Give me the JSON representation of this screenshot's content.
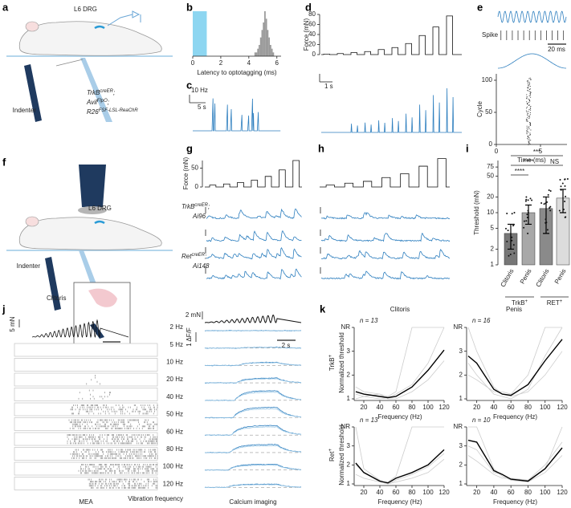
{
  "a": {
    "letter": "a",
    "drg": "L6 DRG",
    "indenter": "Indenter",
    "genotype": [
      {
        "base": "TrkB",
        "sup": "creER",
        "end": ";"
      },
      {
        "base": "Avil",
        "sup": "FlpO",
        "end": ";"
      },
      {
        "base": "R26",
        "sup": "FSF-LSL-ReaChR"
      }
    ]
  },
  "b": {
    "letter": "b",
    "chart_data": {
      "type": "histogram",
      "xlabel": "Latency to optotagging (ms)",
      "bins": [
        4.4,
        4.5,
        4.6,
        4.7,
        4.8,
        4.9,
        5.0,
        5.1,
        5.2,
        5.3,
        5.4,
        5.5,
        5.6,
        5.7,
        5.8
      ],
      "counts": [
        1,
        1,
        2,
        3,
        5,
        7,
        9,
        12,
        10,
        7,
        5,
        3,
        2,
        1
      ],
      "ylim": [
        0,
        12
      ],
      "xlim": [
        0,
        6.3
      ],
      "xticks": [
        0,
        2,
        4,
        6
      ],
      "shaded": [
        0,
        1
      ],
      "color": "#9a9a9a",
      "shade_color": "#8dd6f1"
    }
  },
  "c": {
    "letter": "c",
    "scale_y": "10 Hz",
    "scale_x": "5 s"
  },
  "d": {
    "letter": "d",
    "ylabel": "Force (mN)",
    "ylim": [
      0,
      80
    ],
    "yticks": [
      0,
      20,
      40,
      60,
      80
    ],
    "steps": [
      1,
      2,
      4,
      6,
      10,
      14,
      22,
      38,
      55,
      77
    ],
    "scale_x": "1 s"
  },
  "e": {
    "letter": "e",
    "spike": "Spike",
    "scale_x": "20 ms",
    "ylabel": "Cycle",
    "ylim": [
      0,
      110
    ],
    "yticks": [
      0,
      50,
      100
    ],
    "xlabel": "Time (ms)",
    "xlim": [
      0,
      8
    ],
    "xticks": [
      0,
      5
    ]
  },
  "f": {
    "letter": "f",
    "drg": "L6 DRG",
    "indenter": "Indenter",
    "clitoris": "Clitoris"
  },
  "g": {
    "letter": "g",
    "ylabel": "Force (mN)",
    "ylim": [
      0,
      70
    ],
    "yticks": [
      0,
      50
    ],
    "steps": [
      5,
      8,
      12,
      18,
      28,
      45,
      70
    ],
    "labels": [
      {
        "base": "TrkB",
        "sup": "creER",
        "end": ";",
        "line2": "Ai96"
      },
      {
        "base": "Ret",
        "sup": "creER",
        "end": ";",
        "line2": "Ai148"
      }
    ]
  },
  "h": {
    "letter": "h",
    "steps": [
      5,
      10,
      15,
      25,
      35,
      55,
      75
    ]
  },
  "i": {
    "letter": "i",
    "chart_data": {
      "type": "bar",
      "ylabel": "Threshold (mN)",
      "categories": [
        "Clitoris",
        "Penis",
        "Clitoris",
        "Penis"
      ],
      "groups": [
        {
          "base": "TrkB",
          "sup": "+"
        },
        {
          "base": "RET",
          "sup": "+"
        }
      ],
      "values": [
        4,
        10,
        12,
        19
      ],
      "errors": [
        2,
        4,
        8,
        9
      ],
      "colors": [
        "#777777",
        "#a8a8a8",
        "#8a8a8a",
        "#dcdcdc"
      ],
      "log": true,
      "ylim": [
        1,
        100
      ],
      "yticks": [
        1,
        2,
        5,
        10,
        20,
        50,
        75
      ],
      "significance": [
        "***",
        "****",
        "NS",
        "****"
      ]
    }
  },
  "j": {
    "letter": "j",
    "force_scale": "5 mN",
    "time_scale": "2 s",
    "frequencies": [
      "2 Hz",
      "5 Hz",
      "10 Hz",
      "20 Hz",
      "40 Hz",
      "50 Hz",
      "60 Hz",
      "80 Hz",
      "100 Hz",
      "120 Hz"
    ],
    "freq_title": "Vibration frequency",
    "mea": "MEA",
    "ca_force_scale": "2 mN",
    "ca_scale": "1 ΔF/F",
    "ca_time_scale": "2 s",
    "ca_title": "Calcium imaging"
  },
  "k": {
    "letter": "k",
    "columns": [
      "Clitoris",
      "Penis"
    ],
    "rows": [
      {
        "base": "TrkB",
        "sup": "+"
      },
      {
        "base": "Ret",
        "sup": "+"
      }
    ],
    "ylabel": "Normalized threshold",
    "xlabel": "Frequency (Hz)",
    "chart_data": [
      {
        "type": "line",
        "n": "n = 13",
        "x": [
          10,
          20,
          40,
          50,
          60,
          80,
          100,
          120
        ],
        "xlim": [
          10,
          120
        ],
        "xticks": [
          20,
          40,
          60,
          80,
          100,
          120
        ],
        "ylim": [
          1,
          4
        ],
        "yticks": [
          1,
          2,
          3,
          {
            "value": 4,
            "label": "NR"
          }
        ],
        "series": [
          {
            "color": "#cccccc",
            "values": [
              1,
              1.1,
              1.2,
              1,
              1,
              1.3,
              1.8,
              2.6
            ]
          },
          {
            "color": "#cccccc",
            "values": [
              1.5,
              1.3,
              1.2,
              1.1,
              1.3,
              4,
              4,
              4
            ]
          },
          {
            "color": "#cccccc",
            "values": [
              1.2,
              1.1,
              1,
              1.05,
              1.2,
              1.6,
              2.5,
              4
            ]
          },
          {
            "color": "#000000",
            "values": [
              1.3,
              1.2,
              1.1,
              1.05,
              1.1,
              1.5,
              2.2,
              3.05
            ]
          }
        ]
      },
      {
        "type": "line",
        "n": "n = 16",
        "x": [
          10,
          20,
          40,
          50,
          60,
          80,
          100,
          120
        ],
        "xlim": [
          10,
          120
        ],
        "xticks": [
          20,
          40,
          60,
          80,
          100,
          120
        ],
        "ylim": [
          1,
          4
        ],
        "yticks": [
          1,
          2,
          3,
          {
            "value": 4,
            "label": "NR"
          }
        ],
        "series": [
          {
            "color": "#cccccc",
            "values": [
              4,
              3,
              1.5,
              1.2,
              1.1,
              1.3,
              2,
              3
            ]
          },
          {
            "color": "#cccccc",
            "values": [
              2.5,
              2,
              1.2,
              1.1,
              1,
              1.4,
              2.8,
              4
            ]
          },
          {
            "color": "#cccccc",
            "values": [
              2,
              1.8,
              1.3,
              1.3,
              1.2,
              2,
              4,
              4
            ]
          },
          {
            "color": "#000000",
            "values": [
              2.8,
              2.5,
              1.4,
              1.2,
              1.15,
              1.6,
              2.6,
              3.5
            ]
          }
        ]
      },
      {
        "type": "line",
        "n": "n = 13",
        "x": [
          10,
          20,
          40,
          50,
          60,
          80,
          100,
          120
        ],
        "xlim": [
          10,
          120
        ],
        "xticks": [
          20,
          40,
          60,
          80,
          100,
          120
        ],
        "ylim": [
          1,
          4
        ],
        "yticks": [
          1,
          2,
          3,
          {
            "value": 4,
            "label": "NR"
          }
        ],
        "series": [
          {
            "color": "#cccccc",
            "values": [
              4,
              1.8,
              1.2,
              1,
              1.1,
              1.3,
              1.6,
              2.3
            ]
          },
          {
            "color": "#cccccc",
            "values": [
              1.5,
              1.3,
              1.1,
              1.1,
              1.4,
              4,
              4,
              4
            ]
          },
          {
            "color": "#cccccc",
            "values": [
              2,
              1.6,
              1.1,
              1,
              1.2,
              1.5,
              1.9,
              2.6
            ]
          },
          {
            "color": "#000000",
            "values": [
              2.1,
              1.6,
              1.15,
              1.05,
              1.3,
              1.6,
              2,
              2.8
            ]
          }
        ]
      },
      {
        "type": "line",
        "n": "n = 10",
        "x": [
          10,
          20,
          40,
          50,
          60,
          80,
          100,
          120
        ],
        "xlim": [
          10,
          120
        ],
        "xticks": [
          20,
          40,
          60,
          80,
          100,
          120
        ],
        "ylim": [
          1,
          4
        ],
        "yticks": [
          1,
          2,
          3,
          {
            "value": 4,
            "label": "NR"
          }
        ],
        "series": [
          {
            "color": "#cccccc",
            "values": [
              4,
              4,
              1.8,
              1.4,
              1.2,
              1.1,
              1.6,
              2.5
            ]
          },
          {
            "color": "#cccccc",
            "values": [
              2.5,
              2.2,
              1.5,
              1.3,
              1.3,
              1.2,
              2,
              3.2
            ]
          },
          {
            "color": "#cccccc",
            "values": [
              3,
              2.8,
              1.6,
              1.5,
              1.2,
              1.1,
              1.8,
              4
            ]
          },
          {
            "color": "#000000",
            "values": [
              3.3,
              3.2,
              1.7,
              1.5,
              1.25,
              1.15,
              1.8,
              2.9
            ]
          }
        ]
      }
    ]
  }
}
